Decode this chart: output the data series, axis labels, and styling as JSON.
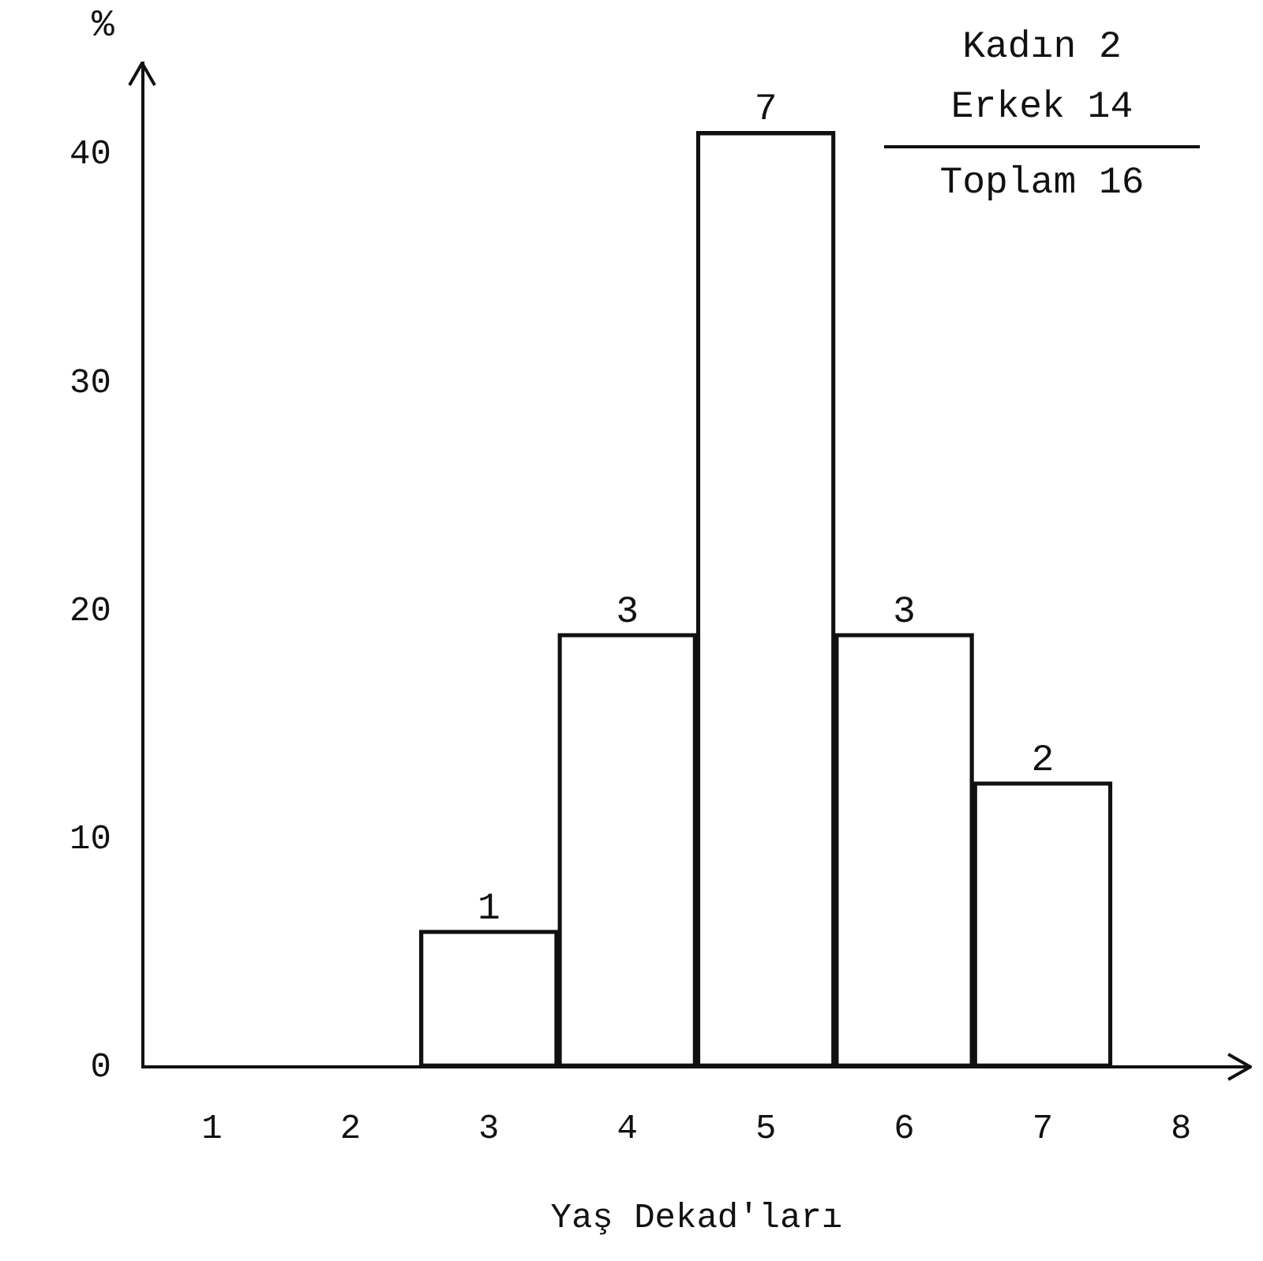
{
  "chart_data": {
    "type": "bar",
    "xlabel": "Yaş Dekad'ları",
    "ylabel": "%",
    "categories": [
      "1",
      "2",
      "3",
      "4",
      "5",
      "6",
      "7",
      "8"
    ],
    "values": [
      0,
      0,
      6,
      19,
      41,
      19,
      12.5,
      0
    ],
    "color": "#111111",
    "ylim": [
      0,
      44
    ],
    "yticks": [
      0,
      10,
      20,
      30,
      40
    ],
    "grid": false,
    "legend": false,
    "annotations": [
      "Kadın  2",
      "Erkek 14",
      "Toplam 16",
      {
        "text": "1",
        "x": "3",
        "y": 6
      },
      {
        "text": "3",
        "x": "4",
        "y": 19
      },
      {
        "text": "7",
        "x": "5",
        "y": 41
      },
      {
        "text": "3",
        "x": "6",
        "y": 19
      },
      {
        "text": "2",
        "x": "7",
        "y": 12.5
      }
    ]
  }
}
